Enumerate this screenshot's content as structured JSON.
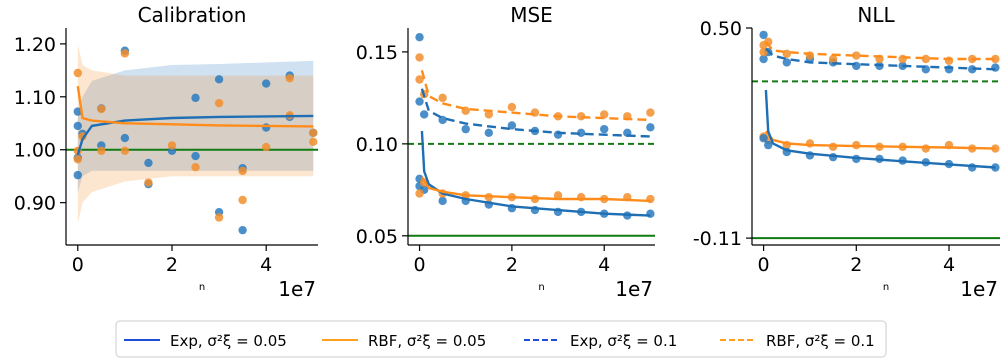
{
  "legend": {
    "position": "bottom-center",
    "entries": [
      {
        "label": "Exp, σ²ξ = 0.05",
        "color": "#1f4ed8",
        "dash": "solid"
      },
      {
        "label": "RBF, σ²ξ = 0.05",
        "color": "#ff9f1c",
        "dash": "solid"
      },
      {
        "label": "Exp, σ²ξ = 0.1",
        "color": "#1f4ed8",
        "dash": "dashed"
      },
      {
        "label": "RBF, σ²ξ = 0.1",
        "color": "#ff9f1c",
        "dash": "dashed"
      }
    ]
  },
  "colors": {
    "exp": "#2a7bbf",
    "rbf": "#f28e2b",
    "reference": "#117a11"
  },
  "chart_data": [
    {
      "type": "scatter",
      "title": "Calibration",
      "xlabel": "n",
      "x_scale_note": "1e7",
      "xlim": [
        -0.25,
        5.1
      ],
      "ylim": [
        0.82,
        1.23
      ],
      "xticks": [
        0,
        2,
        4
      ],
      "xtick_labels": [
        "0",
        "2",
        "4"
      ],
      "yticks": [
        0.9,
        1.0,
        1.1,
        1.2
      ],
      "ytick_labels": [
        "0.90",
        "1.00",
        "1.10",
        "1.20"
      ],
      "reference_lines": [
        {
          "y": 1.0,
          "style": "solid"
        }
      ],
      "series": [
        {
          "key": "exp_005",
          "points": [
            [
              0,
              0.952
            ],
            [
              0,
              0.985
            ],
            [
              0,
              1.045
            ],
            [
              0,
              1.072
            ],
            [
              0.1,
              1.03
            ],
            [
              0.5,
              1.008
            ],
            [
              0.5,
              1.078
            ],
            [
              1,
              1.187
            ],
            [
              1,
              1.022
            ],
            [
              1.5,
              0.975
            ],
            [
              1.5,
              0.935
            ],
            [
              2,
              0.998
            ],
            [
              2.5,
              1.098
            ],
            [
              2.5,
              0.988
            ],
            [
              3,
              1.133
            ],
            [
              3,
              0.882
            ],
            [
              3.5,
              0.848
            ],
            [
              3.5,
              0.965
            ],
            [
              4,
              1.125
            ],
            [
              4,
              1.042
            ],
            [
              4.5,
              1.14
            ],
            [
              4.5,
              1.062
            ],
            [
              5,
              1.032
            ]
          ],
          "curve": [
            [
              0,
              0.99
            ],
            [
              0.1,
              1.02
            ],
            [
              0.3,
              1.045
            ],
            [
              1,
              1.055
            ],
            [
              2,
              1.06
            ],
            [
              3,
              1.062
            ],
            [
              4,
              1.063
            ],
            [
              5,
              1.064
            ]
          ],
          "band": {
            "lower": [
              0.92,
              0.95,
              0.96,
              0.96,
              0.96,
              0.96,
              0.96,
              0.96
            ],
            "upper": [
              1.06,
              1.1,
              1.13,
              1.15,
              1.16,
              1.162,
              1.165,
              1.168
            ]
          }
        },
        {
          "key": "rbf_005",
          "points": [
            [
              0,
              1.145
            ],
            [
              0,
              0.998
            ],
            [
              0,
              0.982
            ],
            [
              0.1,
              1.025
            ],
            [
              0.5,
              1.077
            ],
            [
              0.5,
              0.998
            ],
            [
              1,
              1.182
            ],
            [
              1,
              0.998
            ],
            [
              1.5,
              0.938
            ],
            [
              2,
              1.008
            ],
            [
              2.5,
              0.967
            ],
            [
              3,
              1.088
            ],
            [
              3,
              0.872
            ],
            [
              3.5,
              0.905
            ],
            [
              3.5,
              0.96
            ],
            [
              4,
              1.005
            ],
            [
              4.5,
              1.135
            ],
            [
              4.5,
              1.065
            ],
            [
              5,
              1.032
            ],
            [
              5,
              1.015
            ]
          ],
          "curve": [
            [
              0,
              1.12
            ],
            [
              0.1,
              1.06
            ],
            [
              0.3,
              1.055
            ],
            [
              1,
              1.05
            ],
            [
              2,
              1.048
            ],
            [
              3,
              1.046
            ],
            [
              4,
              1.045
            ],
            [
              5,
              1.044
            ]
          ],
          "band": {
            "lower": [
              0.86,
              0.9,
              0.92,
              0.94,
              0.95,
              0.95,
              0.95,
              0.95
            ],
            "upper": [
              1.2,
              1.16,
              1.15,
              1.14,
              1.14,
              1.14,
              1.14,
              1.14
            ]
          }
        }
      ]
    },
    {
      "type": "line",
      "title": "MSE",
      "xlabel": "n",
      "x_scale_note": "1e7",
      "xlim": [
        -0.25,
        5.1
      ],
      "ylim": [
        0.045,
        0.163
      ],
      "xticks": [
        0,
        2,
        4
      ],
      "xtick_labels": [
        "0",
        "2",
        "4"
      ],
      "yticks": [
        0.05,
        0.1,
        0.15
      ],
      "ytick_labels": [
        "0.05",
        "0.10",
        "0.15"
      ],
      "reference_lines": [
        {
          "y": 0.1,
          "style": "dashed"
        },
        {
          "y": 0.05,
          "style": "solid"
        }
      ],
      "series": [
        {
          "key": "exp_01",
          "dash": "dashed",
          "points": [
            [
              0,
              0.158
            ],
            [
              0,
              0.123
            ],
            [
              0.1,
              0.116
            ],
            [
              0.5,
              0.113
            ],
            [
              1,
              0.108
            ],
            [
              1.5,
              0.106
            ],
            [
              2,
              0.11
            ],
            [
              2.5,
              0.107
            ],
            [
              3,
              0.105
            ],
            [
              3.5,
              0.106
            ],
            [
              4,
              0.108
            ],
            [
              4.5,
              0.106
            ],
            [
              5,
              0.109
            ]
          ],
          "curve": [
            [
              0.05,
              0.13
            ],
            [
              0.2,
              0.118
            ],
            [
              0.5,
              0.114
            ],
            [
              1,
              0.111
            ],
            [
              2,
              0.108
            ],
            [
              3,
              0.106
            ],
            [
              4,
              0.105
            ],
            [
              5,
              0.104
            ]
          ]
        },
        {
          "key": "rbf_01",
          "dash": "dashed",
          "points": [
            [
              0,
              0.147
            ],
            [
              0,
              0.135
            ],
            [
              0.1,
              0.127
            ],
            [
              0.5,
              0.125
            ],
            [
              1,
              0.118
            ],
            [
              1.5,
              0.116
            ],
            [
              2,
              0.12
            ],
            [
              2.5,
              0.117
            ],
            [
              3,
              0.115
            ],
            [
              3.5,
              0.115
            ],
            [
              4,
              0.116
            ],
            [
              4.5,
              0.115
            ],
            [
              5,
              0.117
            ]
          ],
          "curve": [
            [
              0.05,
              0.14
            ],
            [
              0.2,
              0.126
            ],
            [
              0.5,
              0.122
            ],
            [
              1,
              0.119
            ],
            [
              2,
              0.117
            ],
            [
              3,
              0.115
            ],
            [
              4,
              0.114
            ],
            [
              5,
              0.113
            ]
          ]
        },
        {
          "key": "exp_005",
          "dash": "solid",
          "points": [
            [
              0,
              0.081
            ],
            [
              0,
              0.077
            ],
            [
              0.1,
              0.075
            ],
            [
              0.5,
              0.069
            ],
            [
              1,
              0.069
            ],
            [
              1.5,
              0.067
            ],
            [
              2,
              0.065
            ],
            [
              2.5,
              0.064
            ],
            [
              3,
              0.063
            ],
            [
              3.5,
              0.063
            ],
            [
              4,
              0.062
            ],
            [
              4.5,
              0.061
            ],
            [
              5,
              0.062
            ]
          ],
          "curve": [
            [
              0.05,
              0.107
            ],
            [
              0.1,
              0.085
            ],
            [
              0.2,
              0.078
            ],
            [
              0.5,
              0.073
            ],
            [
              1,
              0.07
            ],
            [
              2,
              0.066
            ],
            [
              3,
              0.064
            ],
            [
              4,
              0.062
            ],
            [
              5,
              0.061
            ]
          ]
        },
        {
          "key": "rbf_005",
          "dash": "solid",
          "points": [
            [
              0,
              0.073
            ],
            [
              0.1,
              0.079
            ],
            [
              0.5,
              0.073
            ],
            [
              1,
              0.072
            ],
            [
              1.5,
              0.071
            ],
            [
              2,
              0.071
            ],
            [
              2.5,
              0.07
            ],
            [
              3,
              0.072
            ],
            [
              3.5,
              0.071
            ],
            [
              4,
              0.07
            ],
            [
              4.5,
              0.071
            ],
            [
              5,
              0.07
            ]
          ],
          "curve": [
            [
              0.05,
              0.082
            ],
            [
              0.2,
              0.076
            ],
            [
              0.5,
              0.074
            ],
            [
              1,
              0.072
            ],
            [
              2,
              0.071
            ],
            [
              3,
              0.07
            ],
            [
              4,
              0.07
            ],
            [
              5,
              0.069
            ]
          ]
        }
      ]
    },
    {
      "type": "line",
      "title": "NLL",
      "xlabel": "n",
      "x_scale_note": "1e7",
      "xlim": [
        -0.25,
        5.1
      ],
      "ylim": [
        -0.13,
        0.5
      ],
      "xticks": [
        0,
        2,
        4
      ],
      "xtick_labels": [
        "0",
        "2",
        "4"
      ],
      "yticks": [
        -0.11,
        0.5
      ],
      "ytick_labels": [
        "-0.11",
        "0.50"
      ],
      "reference_lines": [
        {
          "y": 0.345,
          "style": "dashed"
        },
        {
          "y": -0.11,
          "style": "solid"
        }
      ],
      "series": [
        {
          "key": "exp_01",
          "dash": "dashed",
          "points": [
            [
              0,
              0.48
            ],
            [
              0,
              0.41
            ],
            [
              0.1,
              0.43
            ],
            [
              0.5,
              0.4
            ],
            [
              1,
              0.41
            ],
            [
              1.5,
              0.4
            ],
            [
              2,
              0.39
            ],
            [
              2.5,
              0.39
            ],
            [
              3,
              0.39
            ],
            [
              3.5,
              0.38
            ],
            [
              4,
              0.38
            ],
            [
              4.5,
              0.38
            ],
            [
              5,
              0.385
            ]
          ],
          "curve": [
            [
              0.05,
              0.44
            ],
            [
              0.2,
              0.42
            ],
            [
              0.5,
              0.41
            ],
            [
              1,
              0.4
            ],
            [
              2,
              0.395
            ],
            [
              3,
              0.39
            ],
            [
              4,
              0.385
            ],
            [
              5,
              0.38
            ]
          ]
        },
        {
          "key": "rbf_01",
          "dash": "dashed",
          "points": [
            [
              0,
              0.45
            ],
            [
              0,
              0.43
            ],
            [
              0.1,
              0.46
            ],
            [
              0.5,
              0.425
            ],
            [
              1,
              0.42
            ],
            [
              1.5,
              0.41
            ],
            [
              2,
              0.42
            ],
            [
              2.5,
              0.41
            ],
            [
              3,
              0.41
            ],
            [
              3.5,
              0.41
            ],
            [
              4,
              0.405
            ],
            [
              4.5,
              0.41
            ],
            [
              5,
              0.41
            ]
          ],
          "curve": [
            [
              0.05,
              0.46
            ],
            [
              0.2,
              0.435
            ],
            [
              0.5,
              0.43
            ],
            [
              1,
              0.425
            ],
            [
              2,
              0.42
            ],
            [
              3,
              0.415
            ],
            [
              4,
              0.41
            ],
            [
              5,
              0.41
            ]
          ]
        },
        {
          "key": "rbf_005",
          "dash": "solid",
          "points": [
            [
              0,
              0.185
            ],
            [
              0.1,
              0.175
            ],
            [
              0.5,
              0.16
            ],
            [
              1,
              0.165
            ],
            [
              1.5,
              0.155
            ],
            [
              2,
              0.16
            ],
            [
              2.5,
              0.155
            ],
            [
              3,
              0.155
            ],
            [
              3.5,
              0.15
            ],
            [
              4,
              0.16
            ],
            [
              4.5,
              0.15
            ],
            [
              5,
              0.15
            ]
          ],
          "curve": [
            [
              0.05,
              0.2
            ],
            [
              0.2,
              0.175
            ],
            [
              0.5,
              0.165
            ],
            [
              1,
              0.16
            ],
            [
              2,
              0.157
            ],
            [
              3,
              0.155
            ],
            [
              4,
              0.153
            ],
            [
              5,
              0.15
            ]
          ]
        },
        {
          "key": "exp_005",
          "dash": "solid",
          "points": [
            [
              0,
              0.18
            ],
            [
              0.1,
              0.16
            ],
            [
              0.5,
              0.14
            ],
            [
              1,
              0.13
            ],
            [
              1.5,
              0.125
            ],
            [
              2,
              0.12
            ],
            [
              2.5,
              0.12
            ],
            [
              3,
              0.115
            ],
            [
              3.5,
              0.11
            ],
            [
              4,
              0.105
            ],
            [
              4.5,
              0.095
            ],
            [
              5,
              0.095
            ]
          ],
          "curve": [
            [
              0.05,
              0.32
            ],
            [
              0.1,
              0.2
            ],
            [
              0.2,
              0.165
            ],
            [
              0.5,
              0.145
            ],
            [
              1,
              0.135
            ],
            [
              2,
              0.123
            ],
            [
              3,
              0.113
            ],
            [
              4,
              0.104
            ],
            [
              5,
              0.095
            ]
          ]
        }
      ]
    }
  ]
}
